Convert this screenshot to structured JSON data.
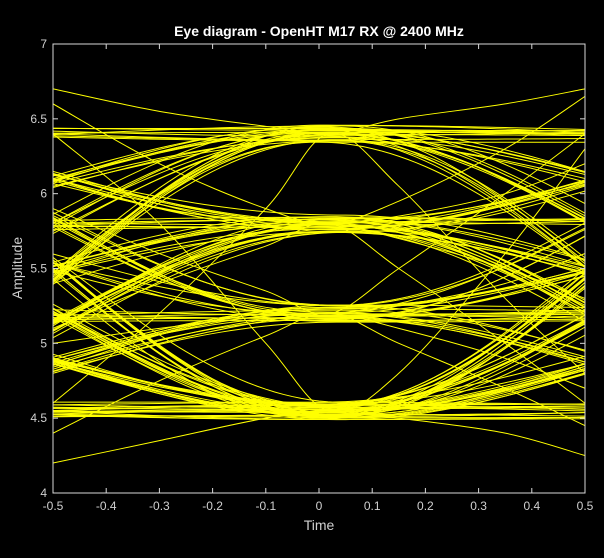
{
  "chart_data": {
    "type": "line",
    "title": "Eye diagram - OpenHT M17 RX @ 2400 MHz",
    "xlabel": "Time",
    "ylabel": "Amplitude",
    "xlim": [
      -0.5,
      0.5
    ],
    "ylim": [
      4,
      7
    ],
    "xticks": [
      "-0.5",
      "-0.4",
      "-0.3",
      "-0.2",
      "-0.1",
      "0",
      "0.1",
      "0.2",
      "0.3",
      "0.4",
      "0.5"
    ],
    "yticks": [
      "4",
      "4.5",
      "5",
      "5.5",
      "6",
      "6.5",
      "7"
    ],
    "grid": false,
    "trace_color": "#ffff00",
    "background": "#000000",
    "symbol_levels": [
      4.55,
      5.2,
      5.8,
      6.4
    ],
    "crossing_time": 0.02,
    "series": [
      {
        "x": [
          -0.5,
          -0.3,
          -0.1,
          0.02,
          0.15,
          0.35,
          0.5
        ],
        "y": [
          4.6,
          5.2,
          5.9,
          6.4,
          6.05,
          5.3,
          4.8
        ]
      },
      {
        "x": [
          -0.5,
          -0.3,
          -0.1,
          0.02,
          0.15,
          0.35,
          0.5
        ],
        "y": [
          6.7,
          6.55,
          6.45,
          6.4,
          6.5,
          6.6,
          6.7
        ]
      },
      {
        "x": [
          -0.5,
          -0.3,
          -0.1,
          0.02,
          0.15,
          0.35,
          0.5
        ],
        "y": [
          4.2,
          4.35,
          4.5,
          4.55,
          4.5,
          4.4,
          4.25
        ]
      },
      {
        "x": [
          -0.5,
          -0.3,
          -0.1,
          0.02,
          0.15,
          0.35,
          0.5
        ],
        "y": [
          6.4,
          5.8,
          5.0,
          4.55,
          4.8,
          5.6,
          6.3
        ]
      },
      {
        "x": [
          -0.5,
          -0.3,
          -0.1,
          0.02,
          0.15,
          0.35,
          0.5
        ],
        "y": [
          5.4,
          5.6,
          5.75,
          5.8,
          5.7,
          5.5,
          5.3
        ]
      },
      {
        "x": [
          -0.5,
          -0.3,
          -0.1,
          0.02,
          0.15,
          0.35,
          0.5
        ],
        "y": [
          5.0,
          5.1,
          5.18,
          5.2,
          5.25,
          5.4,
          5.6
        ]
      },
      {
        "x": [
          -0.5,
          -0.3,
          -0.1,
          0.02,
          0.15,
          0.35,
          0.5
        ],
        "y": [
          6.1,
          5.9,
          5.82,
          5.8,
          5.85,
          6.0,
          6.2
        ]
      },
      {
        "x": [
          -0.5,
          -0.3,
          -0.1,
          0.02,
          0.15,
          0.35,
          0.5
        ],
        "y": [
          4.8,
          5.0,
          5.15,
          5.2,
          5.1,
          4.9,
          4.7
        ]
      },
      {
        "x": [
          -0.5,
          -0.3,
          -0.1,
          0.02,
          0.15,
          0.35,
          0.5
        ],
        "y": [
          5.9,
          5.6,
          5.35,
          5.2,
          5.5,
          6.0,
          6.4
        ]
      },
      {
        "x": [
          -0.5,
          -0.3,
          -0.1,
          0.02,
          0.15,
          0.35,
          0.5
        ],
        "y": [
          5.1,
          5.4,
          5.65,
          5.8,
          5.5,
          5.0,
          4.6
        ]
      },
      {
        "x": [
          -0.5,
          -0.3,
          -0.1,
          0.02,
          0.15,
          0.35,
          0.5
        ],
        "y": [
          6.6,
          6.2,
          5.9,
          5.8,
          5.95,
          6.3,
          6.65
        ]
      },
      {
        "x": [
          -0.5,
          -0.3,
          -0.1,
          0.02,
          0.15,
          0.35,
          0.5
        ],
        "y": [
          4.4,
          4.75,
          5.05,
          5.2,
          5.0,
          4.7,
          4.45
        ]
      }
    ]
  }
}
